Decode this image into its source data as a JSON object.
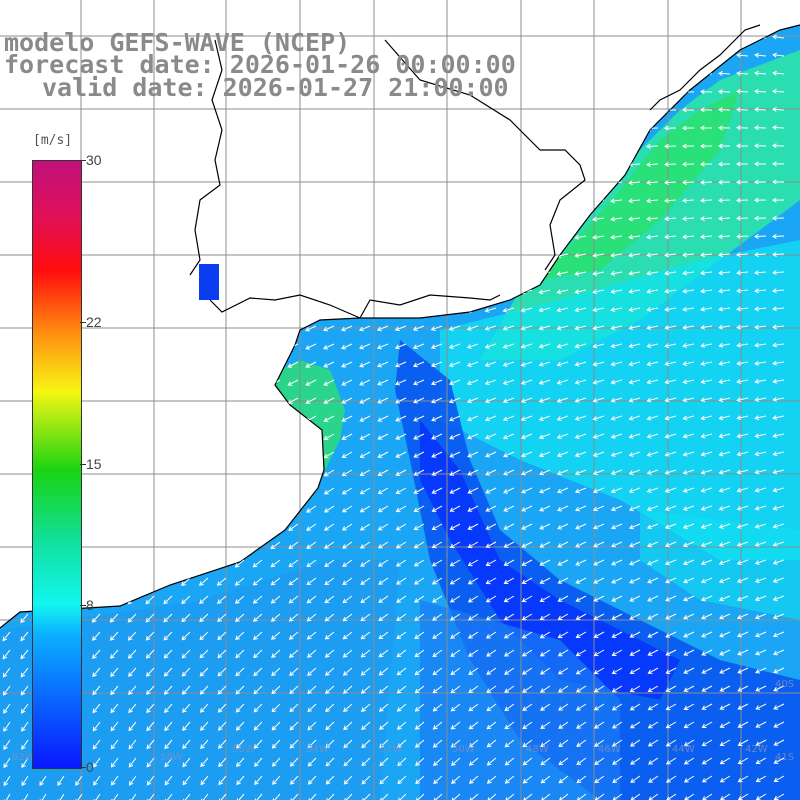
{
  "titles": {
    "line1": "modelo GEFS-WAVE (NCEP)",
    "line2": "forecast date: 2026-01-26 00:00:00",
    "line3": "valid date: 2026-01-27 21:00:00"
  },
  "colorbar": {
    "units": "[m/s]",
    "ticks": [
      {
        "label": "30",
        "value": 30
      },
      {
        "label": "22",
        "value": 22
      },
      {
        "label": "15",
        "value": 15
      },
      {
        "label": "8",
        "value": 8
      },
      {
        "label": "0",
        "value": 0
      }
    ],
    "min": 0,
    "max": 30
  },
  "colors": {
    "land": "#ffffff",
    "grid": "#8c8c8c",
    "coast": "#000000",
    "arrow": "#ffffff"
  }
}
